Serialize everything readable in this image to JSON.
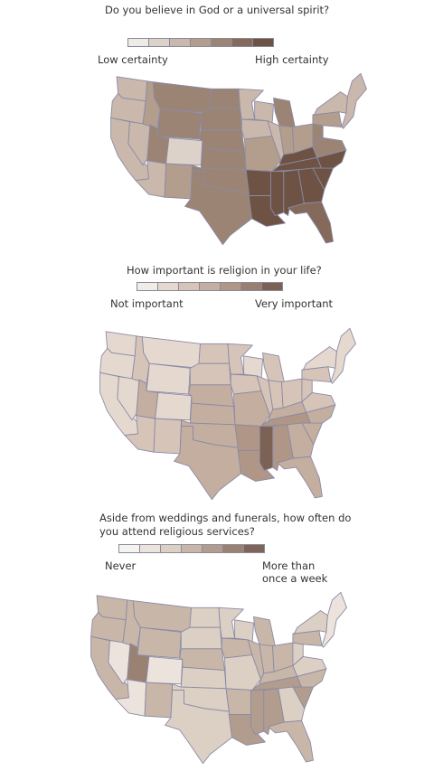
{
  "panels": [
    {
      "question": "Do you believe in God or a universal spirit?",
      "low_label": "Low certainty",
      "high_label": "High certainty",
      "scale": [
        "#efebe7",
        "#ddd2ca",
        "#c9b8ab",
        "#b39d8d",
        "#9c8474",
        "#85695a",
        "#6e5345"
      ],
      "levels": {
        "wa": 2,
        "or": 2,
        "ca": 2,
        "nv": 2,
        "id": 3,
        "mt": 4,
        "wy": 4,
        "ut": 4,
        "co": 1,
        "az": 2,
        "nm": 3,
        "nd": 4,
        "sd": 4,
        "ne": 4,
        "ks": 4,
        "ok": 4,
        "tx": 4,
        "mn": 2,
        "ia": 2,
        "mo": 3,
        "ar": 6,
        "la": 6,
        "wi": 2,
        "il": 2,
        "mi": 4,
        "in": 3,
        "oh": 3,
        "ky": 6,
        "tn": 6,
        "ms": 6,
        "al": 6,
        "ga": 6,
        "fl": 5,
        "sc": 6,
        "nc": 6,
        "va": 4,
        "wv": 4,
        "pa": 3,
        "ny": 2,
        "ne_states": 2
      }
    },
    {
      "question": "How important is religion in your life?",
      "low_label": "Not important",
      "high_label": "Very important",
      "scale": [
        "#f2ece6",
        "#e5d9cf",
        "#d5c4b7",
        "#c3ae9f",
        "#af9687",
        "#9a7f70",
        "#7c6254"
      ],
      "levels": {
        "wa": 1,
        "or": 1,
        "ca": 1,
        "nv": 1,
        "id": 2,
        "mt": 1,
        "wy": 1,
        "ut": 3,
        "co": 1,
        "az": 2,
        "nm": 2,
        "nd": 2,
        "sd": 2,
        "ne": 3,
        "ks": 3,
        "ok": 3,
        "tx": 3,
        "mn": 2,
        "ia": 2,
        "mo": 3,
        "ar": 4,
        "la": 4,
        "wi": 1,
        "il": 2,
        "mi": 2,
        "in": 2,
        "oh": 2,
        "ky": 3,
        "tn": 4,
        "ms": 6,
        "al": 4,
        "ga": 3,
        "fl": 3,
        "sc": 3,
        "nc": 3,
        "va": 2,
        "wv": 2,
        "pa": 2,
        "ny": 1,
        "ne_states": 1
      }
    },
    {
      "question": "Aside from weddings and funerals, how often do\nyou attend religious services?",
      "low_label": "Never",
      "high_label": "More than\nonce a week",
      "scale": [
        "#f6f4f1",
        "#ece4dc",
        "#dccfc3",
        "#c8b6a8",
        "#b29c8d",
        "#9a8273",
        "#7f6557"
      ],
      "levels": {
        "wa": 3,
        "or": 3,
        "ca": 3,
        "nv": 1,
        "id": 3,
        "mt": 3,
        "wy": 3,
        "ut": 5,
        "co": 1,
        "az": 1,
        "nm": 3,
        "nd": 2,
        "sd": 2,
        "ne": 3,
        "ks": 2,
        "ok": 2,
        "tx": 2,
        "mn": 2,
        "ia": 3,
        "mo": 2,
        "ar": 3,
        "la": 4,
        "wi": 2,
        "il": 3,
        "mi": 3,
        "in": 3,
        "oh": 3,
        "ky": 3,
        "tn": 4,
        "ms": 4,
        "al": 4,
        "ga": 2,
        "fl": 3,
        "sc": 4,
        "nc": 3,
        "va": 2,
        "wv": 2,
        "pa": 3,
        "ny": 2,
        "ne_states": 1
      }
    }
  ]
}
